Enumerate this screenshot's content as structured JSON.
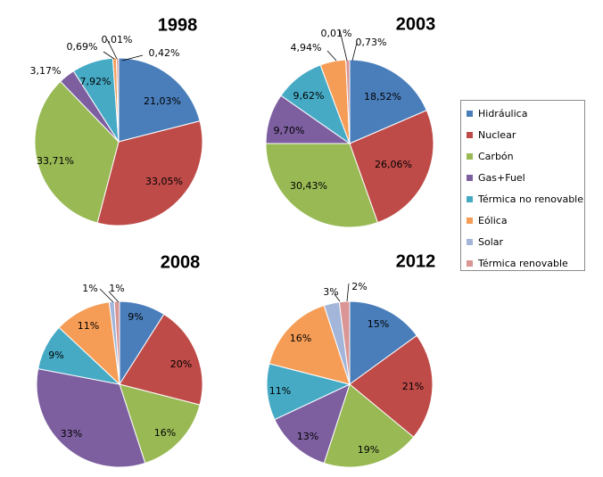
{
  "chart_data": [
    {
      "type": "pie",
      "title": "1998",
      "categories": [
        "Hidráulica",
        "Nuclear",
        "Carbón",
        "Gas+Fuel",
        "Térmica no renovable",
        "Eólica",
        "Solar",
        "Térmica renovable"
      ],
      "values": [
        21.03,
        33.05,
        33.71,
        3.17,
        7.92,
        0.69,
        0.01,
        0.42
      ],
      "labels": [
        "21,03%",
        "33,05%",
        "33,71%",
        "3,17%",
        "7,92%",
        "0,69%",
        "0,01%",
        "0,42%"
      ]
    },
    {
      "type": "pie",
      "title": "2003",
      "categories": [
        "Hidráulica",
        "Nuclear",
        "Carbón",
        "Gas+Fuel",
        "Térmica no renovable",
        "Eólica",
        "Solar",
        "Térmica renovable"
      ],
      "values": [
        18.52,
        26.06,
        30.43,
        9.7,
        9.62,
        4.94,
        0.01,
        0.73
      ],
      "labels": [
        "18,52%",
        "26,06%",
        "30,43%",
        "9,70%",
        "9,62%",
        "4,94%",
        "0,01%",
        "0,73%"
      ]
    },
    {
      "type": "pie",
      "title": "2008",
      "categories": [
        "Hidráulica",
        "Nuclear",
        "Carbón",
        "Gas+Fuel",
        "Térmica no renovable",
        "Eólica",
        "Solar",
        "Térmica renovable"
      ],
      "values": [
        9,
        20,
        16,
        33,
        9,
        11,
        1,
        1
      ],
      "labels": [
        "9%",
        "20%",
        "16%",
        "33%",
        "9%",
        "11%",
        "1%",
        "1%"
      ]
    },
    {
      "type": "pie",
      "title": "2012",
      "categories": [
        "Hidráulica",
        "Nuclear",
        "Carbón",
        "Gas+Fuel",
        "Térmica no renovable",
        "Eólica",
        "Solar",
        "Térmica renovable"
      ],
      "values": [
        15,
        21,
        19,
        13,
        11,
        16,
        3,
        2
      ],
      "labels": [
        "15%",
        "21%",
        "19%",
        "13%",
        "11%",
        "16%",
        "3%",
        "2%"
      ]
    }
  ],
  "legend": {
    "placement": "right",
    "items": [
      {
        "label": "Hidráulica",
        "color": "#4a7ebb"
      },
      {
        "label": "Nuclear",
        "color": "#be4b48"
      },
      {
        "label": "Carbón",
        "color": "#98b954"
      },
      {
        "label": "Gas+Fuel",
        "color": "#7d5fa0"
      },
      {
        "label": "Térmica no renovable",
        "color": "#46aac5"
      },
      {
        "label": "Eólica",
        "color": "#f59d56"
      },
      {
        "label": "Solar",
        "color": "#a3b6d9"
      },
      {
        "label": "Térmica renovable",
        "color": "#d99694"
      }
    ]
  }
}
